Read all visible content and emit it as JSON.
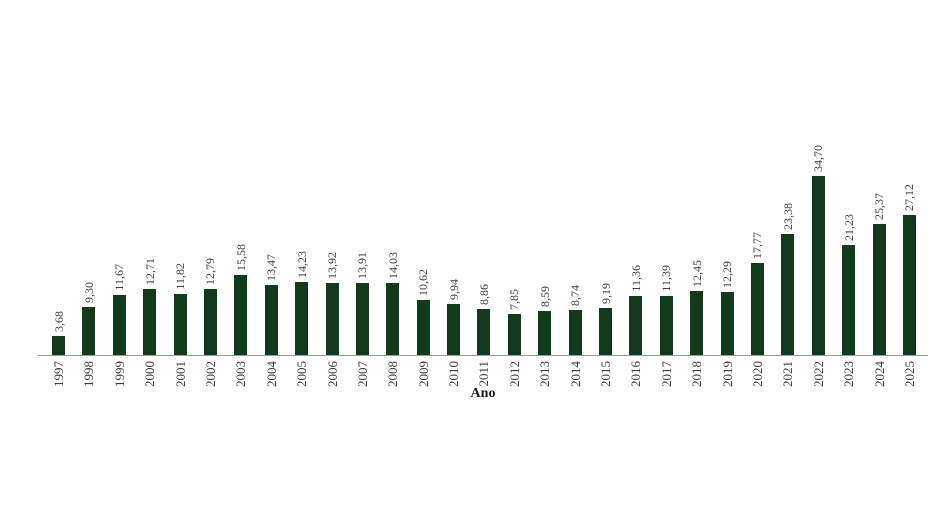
{
  "page": {
    "background": "#ffffff"
  },
  "chart_data": {
    "type": "bar",
    "title": "",
    "xlabel": "Ano",
    "ylabel": "",
    "categories": [
      "1997",
      "1998",
      "1999",
      "2000",
      "2001",
      "2002",
      "2003",
      "2004",
      "2005",
      "2006",
      "2007",
      "2008",
      "2009",
      "2010",
      "2011",
      "2012",
      "2013",
      "2014",
      "2015",
      "2016",
      "2017",
      "2018",
      "2019",
      "2020",
      "2021",
      "2022",
      "2023",
      "2024",
      "2025"
    ],
    "values": [
      3.68,
      9.3,
      11.67,
      12.71,
      11.82,
      12.79,
      15.58,
      13.47,
      14.23,
      13.92,
      13.91,
      14.03,
      10.62,
      9.94,
      8.86,
      7.85,
      8.59,
      8.74,
      9.19,
      11.36,
      11.39,
      12.45,
      12.29,
      17.77,
      23.38,
      34.7,
      21.23,
      25.37,
      27.12
    ],
    "value_labels": [
      "3,68",
      "9,30",
      "11,67",
      "12,71",
      "11,82",
      "12,79",
      "15,58",
      "13,47",
      "14,23",
      "13,92",
      "13,91",
      "14,03",
      "10,62",
      "9,94",
      "8,86",
      "7,85",
      "8,59",
      "8,74",
      "9,19",
      "11,36",
      "11,39",
      "12,45",
      "12,29",
      "17,77",
      "23,38",
      "34,70",
      "21,23",
      "25,37",
      "27,12"
    ],
    "ylim": [
      0,
      36
    ],
    "grid": false,
    "legend_position": "none",
    "bar_color": "#143a1e",
    "label_color": "#3d3d3d",
    "axis_color": "#9a9a9a",
    "value_label_rotation_deg": 90,
    "tick_label_rotation_deg": 90
  }
}
